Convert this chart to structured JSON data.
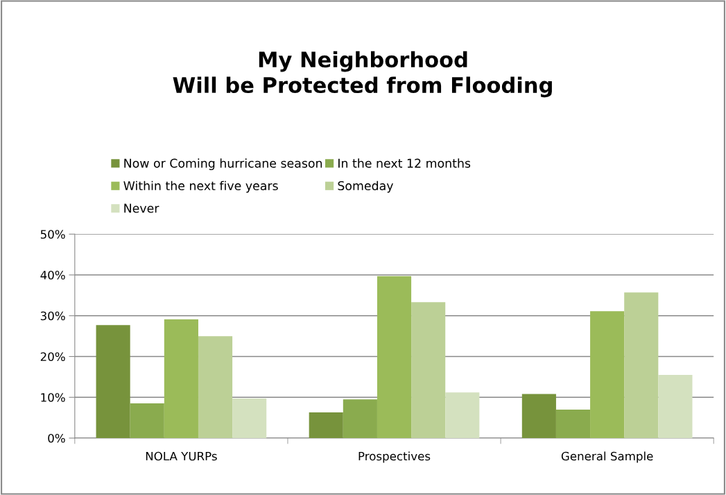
{
  "chart_data": {
    "type": "bar",
    "title": "My Neighborhood\nWill be Protected from Flooding",
    "categories": [
      "NOLA YURPs",
      "Prospectives",
      "General Sample"
    ],
    "series": [
      {
        "name": "Now or Coming hurricane season",
        "color": "#77933c",
        "values": [
          27.7,
          6.3,
          10.8
        ]
      },
      {
        "name": "In the next 12 months",
        "color": "#8aab4e",
        "values": [
          8.5,
          9.5,
          7.0
        ]
      },
      {
        "name": "Within the next five years",
        "color": "#9bbb59",
        "values": [
          29.1,
          39.7,
          31.1
        ]
      },
      {
        "name": "Someday",
        "color": "#bcd096",
        "values": [
          25.0,
          33.3,
          35.7
        ]
      },
      {
        "name": "Never",
        "color": "#d4e1bf",
        "values": [
          9.7,
          11.2,
          15.5
        ]
      }
    ],
    "ylim": [
      0,
      50
    ],
    "yticks": [
      {
        "value": 0,
        "label": "0%"
      },
      {
        "value": 10,
        "label": "10%"
      },
      {
        "value": 20,
        "label": "20%"
      },
      {
        "value": 30,
        "label": "30%"
      },
      {
        "value": 40,
        "label": "40%"
      },
      {
        "value": 50,
        "label": "50%"
      }
    ],
    "grid": "y",
    "legend": "top"
  }
}
